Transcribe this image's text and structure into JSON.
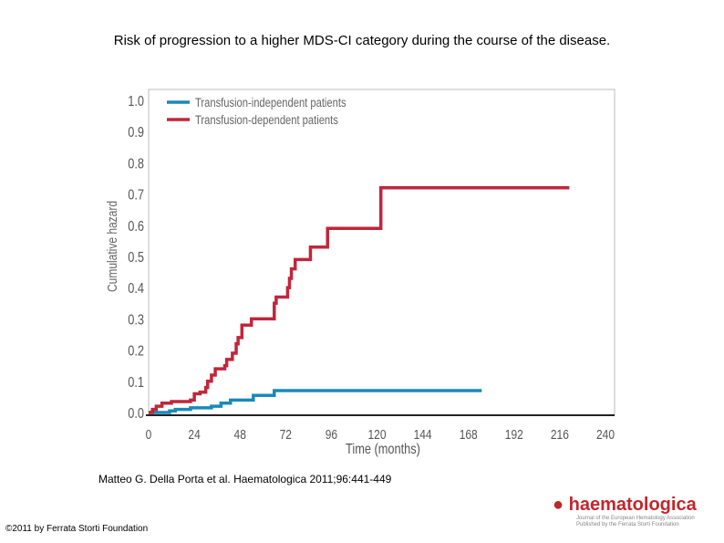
{
  "page_title": "Risk of progression to a higher MDS-CI category during the course of the disease.",
  "citation": "Matteo G. Della Porta et al. Haematologica 2011;96:441-449",
  "copyright": "©2011 by Ferrata Storti Foundation",
  "logo": {
    "name": "haematologica",
    "subtitle_1": "Journal of the European Hematology Association",
    "subtitle_2": "Published by the Ferrata Storti Foundation"
  },
  "chart_data": {
    "type": "line",
    "step": true,
    "xlabel": "Time (months)",
    "ylabel": "Cumulative hazard",
    "xlim": [
      0,
      240
    ],
    "ylim": [
      0,
      1.0
    ],
    "xticks": [
      "0",
      "24",
      "48",
      "72",
      "96",
      "120",
      "144",
      "168",
      "192",
      "216",
      "240"
    ],
    "yticks": [
      "0.0",
      "0.1",
      "0.2",
      "0.3",
      "0.4",
      "0.5",
      "0.6",
      "0.7",
      "0.8",
      "0.9",
      "1.0"
    ],
    "grid": false,
    "legend": "top-left",
    "series": [
      {
        "name": "Transfusion-independent patients",
        "color": "#1a8ab8",
        "x": [
          0,
          11,
          14,
          22,
          33,
          38,
          43,
          55,
          66,
          175
        ],
        "y": [
          0,
          0.005,
          0.01,
          0.015,
          0.02,
          0.03,
          0.04,
          0.055,
          0.07,
          0.07
        ]
      },
      {
        "name": "Transfusion-dependent patients",
        "color": "#c0263a",
        "x": [
          0,
          2,
          4,
          7,
          12,
          22,
          24,
          27,
          30,
          31,
          33,
          35,
          40,
          41,
          44,
          46,
          47,
          49,
          54,
          66,
          67,
          73,
          74,
          75,
          77,
          85,
          94,
          122,
          221
        ],
        "y": [
          0,
          0.01,
          0.02,
          0.03,
          0.035,
          0.04,
          0.06,
          0.065,
          0.08,
          0.1,
          0.12,
          0.14,
          0.15,
          0.17,
          0.19,
          0.22,
          0.24,
          0.28,
          0.3,
          0.35,
          0.37,
          0.4,
          0.43,
          0.46,
          0.49,
          0.53,
          0.59,
          0.72,
          0.72
        ]
      }
    ]
  }
}
